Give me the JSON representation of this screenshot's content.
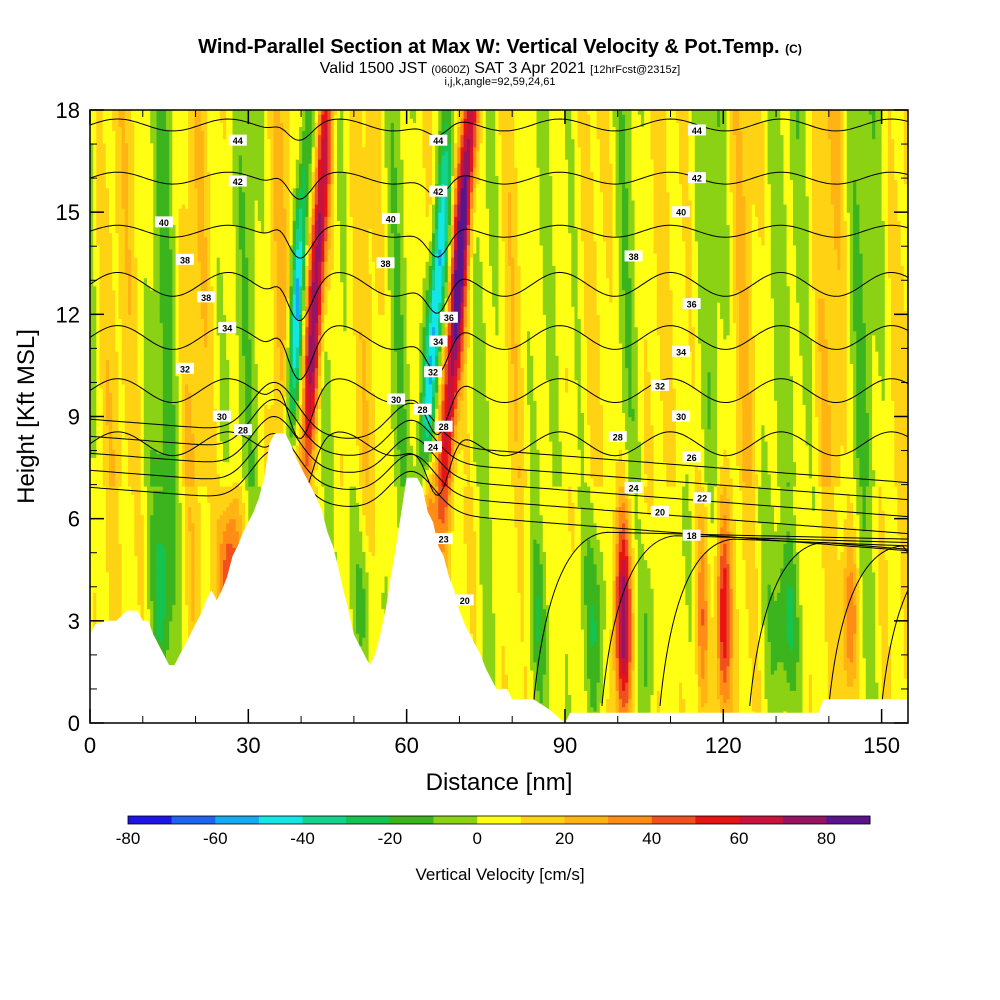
{
  "header": {
    "title_main": "Wind-Parallel Section at Max W: Vertical Velocity & Pot.Temp.",
    "title_tag": "(C)",
    "valid_prefix": "Valid 1500 JST",
    "valid_utc": "(0600Z)",
    "valid_date": "SAT 3 Apr 2021",
    "forecast_tag": "[12hrFcst@2315z]",
    "indices": "i,j,k,angle=92,59,24,61"
  },
  "colors": {
    "scale": [
      "#1e14e6",
      "#1e64f0",
      "#14aaf0",
      "#14e6e6",
      "#14d28c",
      "#14c350",
      "#3cb41e",
      "#8cd214",
      "#ffff14",
      "#ffd214",
      "#ffb414",
      "#ff8c14",
      "#f0501e",
      "#e61414",
      "#c8143c",
      "#961464",
      "#5a148c"
    ],
    "terrain": "#ffffff",
    "contour": "#000000"
  },
  "chart_data": {
    "type": "heatmap",
    "xlabel": "Distance [nm]",
    "ylabel": "Height [Kft MSL]",
    "xlim": [
      0,
      155
    ],
    "ylim": [
      0,
      18
    ],
    "xticks": [
      0,
      30,
      60,
      90,
      120,
      150
    ],
    "yticks": [
      0,
      3,
      6,
      9,
      12,
      15,
      18
    ],
    "colorbar": {
      "label": "Vertical Velocity [cm/s]",
      "ticks": [
        -80,
        -60,
        -40,
        -20,
        0,
        20,
        40,
        60,
        80
      ],
      "range": [
        -80,
        90
      ],
      "step": 10
    },
    "contours": {
      "variable": "Potential temperature",
      "levels": [
        18,
        20,
        22,
        24,
        26,
        28,
        30,
        32,
        34,
        36,
        38,
        40,
        42,
        44
      ],
      "labels": [
        {
          "text": "44",
          "x": 28,
          "y": 17.1
        },
        {
          "text": "44",
          "x": 66,
          "y": 17.1
        },
        {
          "text": "44",
          "x": 115,
          "y": 17.4
        },
        {
          "text": "42",
          "x": 28,
          "y": 15.9
        },
        {
          "text": "42",
          "x": 66,
          "y": 15.6
        },
        {
          "text": "42",
          "x": 115,
          "y": 16.0
        },
        {
          "text": "40",
          "x": 14,
          "y": 14.7
        },
        {
          "text": "40",
          "x": 57,
          "y": 14.8
        },
        {
          "text": "40",
          "x": 112,
          "y": 15.0
        },
        {
          "text": "38",
          "x": 18,
          "y": 13.6
        },
        {
          "text": "38",
          "x": 56,
          "y": 13.5
        },
        {
          "text": "38",
          "x": 103,
          "y": 13.7
        },
        {
          "text": "38",
          "x": 22,
          "y": 12.5
        },
        {
          "text": "36",
          "x": 68,
          "y": 11.9
        },
        {
          "text": "36",
          "x": 114,
          "y": 12.3
        },
        {
          "text": "34",
          "x": 26,
          "y": 11.6
        },
        {
          "text": "34",
          "x": 112,
          "y": 10.9
        },
        {
          "text": "34",
          "x": 66,
          "y": 11.2
        },
        {
          "text": "32",
          "x": 18,
          "y": 10.4
        },
        {
          "text": "32",
          "x": 65,
          "y": 10.3
        },
        {
          "text": "32",
          "x": 108,
          "y": 9.9
        },
        {
          "text": "30",
          "x": 25,
          "y": 9.0
        },
        {
          "text": "30",
          "x": 58,
          "y": 9.5
        },
        {
          "text": "30",
          "x": 112,
          "y": 9.0
        },
        {
          "text": "28",
          "x": 29,
          "y": 8.6
        },
        {
          "text": "28",
          "x": 63,
          "y": 9.2
        },
        {
          "text": "28",
          "x": 67,
          "y": 8.7
        },
        {
          "text": "28",
          "x": 100,
          "y": 8.4
        },
        {
          "text": "26",
          "x": 114,
          "y": 7.8
        },
        {
          "text": "24",
          "x": 65,
          "y": 8.1
        },
        {
          "text": "24",
          "x": 103,
          "y": 6.9
        },
        {
          "text": "22",
          "x": 116,
          "y": 6.6
        },
        {
          "text": "20",
          "x": 108,
          "y": 6.2
        },
        {
          "text": "18",
          "x": 114,
          "y": 5.5
        },
        {
          "text": "23",
          "x": 67,
          "y": 5.4
        },
        {
          "text": "20",
          "x": 71,
          "y": 3.6
        }
      ]
    },
    "terrain_profile": [
      [
        0,
        2.6
      ],
      [
        1,
        2.9
      ],
      [
        3,
        3.0
      ],
      [
        5,
        3.0
      ],
      [
        7,
        3.3
      ],
      [
        9,
        3.3
      ],
      [
        10,
        3.0
      ],
      [
        11,
        3.0
      ],
      [
        12,
        2.6
      ],
      [
        13,
        2.3
      ],
      [
        14,
        2.0
      ],
      [
        15,
        1.7
      ],
      [
        16,
        1.7
      ],
      [
        17,
        2.0
      ],
      [
        18,
        2.3
      ],
      [
        19,
        2.6
      ],
      [
        20,
        2.9
      ],
      [
        21,
        3.2
      ],
      [
        22,
        3.6
      ],
      [
        23,
        3.9
      ],
      [
        24,
        3.6
      ],
      [
        25,
        3.9
      ],
      [
        26,
        4.3
      ],
      [
        27,
        4.9
      ],
      [
        28,
        5.2
      ],
      [
        29,
        5.6
      ],
      [
        30,
        5.9
      ],
      [
        31,
        6.2
      ],
      [
        32,
        6.6
      ],
      [
        33,
        7.2
      ],
      [
        34,
        8.2
      ],
      [
        35,
        8.5
      ],
      [
        36,
        8.5
      ],
      [
        37,
        8.5
      ],
      [
        38,
        8.2
      ],
      [
        39,
        7.8
      ],
      [
        40,
        7.5
      ],
      [
        41,
        7.2
      ],
      [
        42,
        6.9
      ],
      [
        43,
        6.6
      ],
      [
        44,
        6.2
      ],
      [
        45,
        5.6
      ],
      [
        46,
        5.2
      ],
      [
        47,
        4.6
      ],
      [
        48,
        3.9
      ],
      [
        49,
        3.3
      ],
      [
        50,
        2.6
      ],
      [
        51,
        2.3
      ],
      [
        52,
        2.0
      ],
      [
        53,
        1.7
      ],
      [
        54,
        2.0
      ],
      [
        55,
        2.6
      ],
      [
        56,
        3.3
      ],
      [
        57,
        4.3
      ],
      [
        58,
        5.2
      ],
      [
        59,
        6.2
      ],
      [
        60,
        7.2
      ],
      [
        61,
        7.2
      ],
      [
        62,
        7.2
      ],
      [
        63,
        6.9
      ],
      [
        64,
        6.2
      ],
      [
        65,
        5.9
      ],
      [
        66,
        5.2
      ],
      [
        67,
        4.9
      ],
      [
        68,
        4.3
      ],
      [
        69,
        3.9
      ],
      [
        70,
        3.3
      ],
      [
        71,
        2.9
      ],
      [
        72,
        2.6
      ],
      [
        73,
        2.3
      ],
      [
        74,
        2.0
      ],
      [
        75,
        1.6
      ],
      [
        76,
        1.3
      ],
      [
        77,
        1.0
      ],
      [
        79,
        1.0
      ],
      [
        80,
        0.7
      ],
      [
        84,
        0.7
      ],
      [
        87,
        0.4
      ],
      [
        90,
        0.0
      ],
      [
        91,
        0.3
      ],
      [
        95,
        0.3
      ],
      [
        100,
        0.3
      ],
      [
        110,
        0.3
      ],
      [
        120,
        0.3
      ],
      [
        130,
        0.3
      ],
      [
        138,
        0.3
      ],
      [
        139,
        0.7
      ],
      [
        150,
        0.7
      ],
      [
        155,
        0.7
      ]
    ]
  }
}
